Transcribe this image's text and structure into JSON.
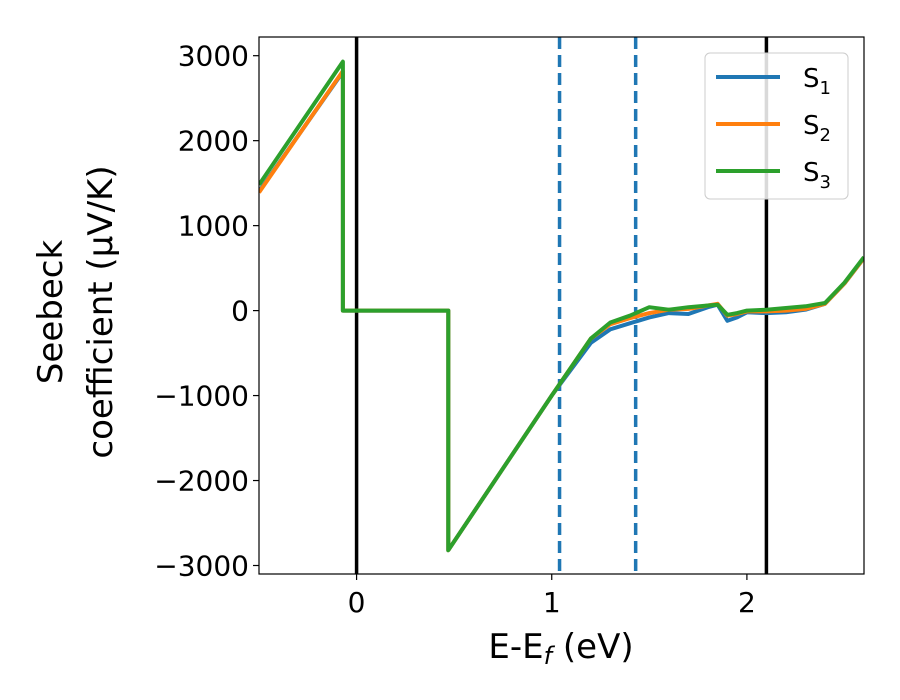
{
  "chart_data": {
    "type": "line",
    "xlabel": "E-E",
    "xlabel_sub": "f",
    "xlabel_unit": " (eV)",
    "ylabel_line1": "Seebeck",
    "ylabel_line2": "coefficient  (μV/K)",
    "xlim": [
      -0.5,
      2.6
    ],
    "ylim": [
      -3100,
      3220
    ],
    "xticks": [
      0,
      1,
      2
    ],
    "xtick_labels": [
      "0",
      "1",
      "2"
    ],
    "yticks": [
      -3000,
      -2000,
      -1000,
      0,
      1000,
      2000,
      3000
    ],
    "ytick_labels": [
      "−3000",
      "−2000",
      "−1000",
      "0",
      "1000",
      "2000",
      "3000"
    ],
    "legend_position": "top-right",
    "vlines": [
      {
        "x": 0.0,
        "style": "solid",
        "color": "#000000"
      },
      {
        "x": 2.1,
        "style": "solid",
        "color": "#000000"
      },
      {
        "x": 1.04,
        "style": "dashed",
        "color": "#1f77b4"
      },
      {
        "x": 1.43,
        "style": "dashed",
        "color": "#1f77b4"
      }
    ],
    "series": [
      {
        "name": "S",
        "name_sub": "1",
        "color": "#1f77b4",
        "x": [
          -0.5,
          -0.07,
          -0.07,
          0.47,
          0.47,
          1.0,
          1.2,
          1.3,
          1.4,
          1.5,
          1.6,
          1.7,
          1.8,
          1.85,
          1.9,
          1.95,
          2.0,
          2.1,
          2.2,
          2.3,
          2.4,
          2.5,
          2.6
        ],
        "y": [
          1400,
          2810,
          0,
          0,
          -2820,
          -1000,
          -380,
          -220,
          -150,
          -80,
          -30,
          -40,
          40,
          70,
          -120,
          -80,
          -20,
          -30,
          -20,
          10,
          80,
          320,
          620
        ]
      },
      {
        "name": "S",
        "name_sub": "2",
        "color": "#ff7f0e",
        "x": [
          -0.5,
          -0.07,
          -0.07,
          0.47,
          0.47,
          1.0,
          1.2,
          1.3,
          1.4,
          1.5,
          1.6,
          1.7,
          1.8,
          1.85,
          1.9,
          1.95,
          2.0,
          2.1,
          2.2,
          2.3,
          2.4,
          2.5,
          2.6
        ],
        "y": [
          1390,
          2820,
          0,
          0,
          -2820,
          -1000,
          -330,
          -160,
          -90,
          -30,
          10,
          20,
          60,
          80,
          -60,
          -40,
          -10,
          -10,
          0,
          20,
          80,
          320,
          620
        ]
      },
      {
        "name": "S",
        "name_sub": "3",
        "color": "#2ca02c",
        "x": [
          -0.5,
          -0.07,
          -0.07,
          0.47,
          0.47,
          1.0,
          1.2,
          1.3,
          1.4,
          1.5,
          1.6,
          1.7,
          1.8,
          1.85,
          1.9,
          1.95,
          2.0,
          2.1,
          2.2,
          2.3,
          2.4,
          2.5,
          2.6
        ],
        "y": [
          1480,
          2930,
          0,
          0,
          -2820,
          -1000,
          -330,
          -140,
          -60,
          40,
          10,
          40,
          60,
          70,
          -50,
          -30,
          0,
          10,
          30,
          50,
          90,
          330,
          630
        ]
      }
    ]
  }
}
